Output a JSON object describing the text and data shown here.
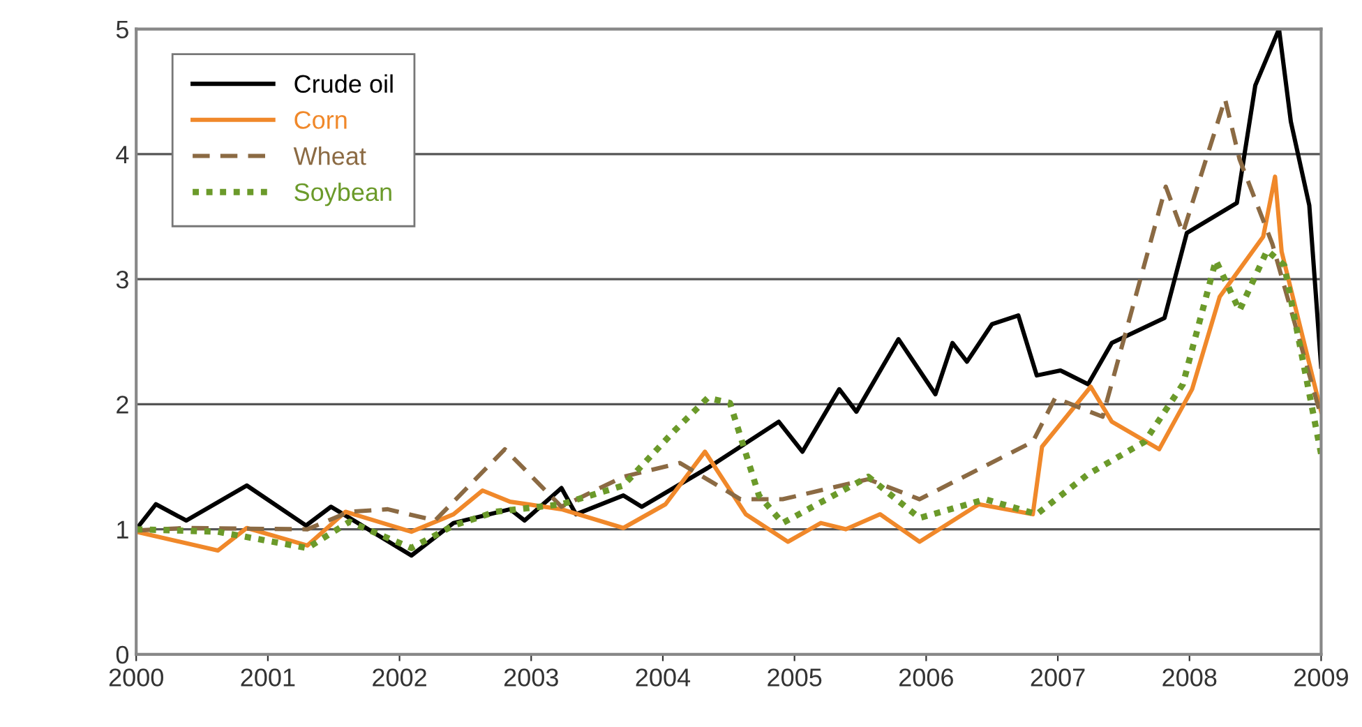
{
  "chart_data": {
    "type": "line",
    "xlim": [
      2000,
      2009
    ],
    "xticks": [
      2000,
      2001,
      2002,
      2003,
      2004,
      2005,
      2006,
      2007,
      2008,
      2009
    ],
    "ylim": [
      0,
      5
    ],
    "yticks": [
      0,
      1,
      2,
      3,
      4,
      5
    ],
    "grid": "y",
    "legend": "top left",
    "series": [
      {
        "name": "Crude oil",
        "color": "#000000",
        "line_style": "solid",
        "x": [
          2000.0,
          2000.15,
          2000.38,
          2000.84,
          2001.29,
          2001.48,
          2002.09,
          2002.41,
          2002.84,
          2002.95,
          2003.23,
          2003.34,
          2003.7,
          2003.84,
          2004.34,
          2004.88,
          2005.06,
          2005.34,
          2005.47,
          2005.79,
          2006.07,
          2006.2,
          2006.31,
          2006.5,
          2006.7,
          2006.84,
          2007.02,
          2007.23,
          2007.41,
          2007.81,
          2007.98,
          2008.36,
          2008.5,
          2008.68,
          2008.77,
          2008.91,
          2009.0
        ],
        "values": [
          1.0,
          1.2,
          1.07,
          1.35,
          1.03,
          1.18,
          0.79,
          1.05,
          1.16,
          1.07,
          1.33,
          1.12,
          1.27,
          1.18,
          1.49,
          1.86,
          1.62,
          2.12,
          1.94,
          2.52,
          2.08,
          2.49,
          2.34,
          2.64,
          2.71,
          2.23,
          2.27,
          2.16,
          2.49,
          2.69,
          3.37,
          3.61,
          4.55,
          5.0,
          4.26,
          3.59,
          2.3
        ]
      },
      {
        "name": "Corn",
        "color": "#f0882a",
        "line_style": "solid",
        "x": [
          2000.0,
          2000.62,
          2000.84,
          2001.3,
          2001.59,
          2002.09,
          2002.41,
          2002.63,
          2002.84,
          2003.23,
          2003.7,
          2004.02,
          2004.32,
          2004.63,
          2004.95,
          2005.2,
          2005.39,
          2005.65,
          2005.95,
          2006.4,
          2006.81,
          2006.88,
          2007.25,
          2007.41,
          2007.77,
          2008.02,
          2008.23,
          2008.56,
          2008.65,
          2008.7,
          2009.0
        ],
        "values": [
          0.98,
          0.83,
          1.01,
          0.87,
          1.14,
          0.98,
          1.12,
          1.31,
          1.22,
          1.16,
          1.01,
          1.2,
          1.62,
          1.12,
          0.9,
          1.05,
          1.0,
          1.12,
          0.9,
          1.2,
          1.12,
          1.66,
          2.14,
          1.86,
          1.64,
          2.12,
          2.86,
          3.34,
          3.82,
          3.22,
          1.94
        ]
      },
      {
        "name": "Wheat",
        "color": "#8b6a43",
        "line_style": "dashed",
        "x": [
          2000.0,
          2000.38,
          2001.3,
          2001.62,
          2001.91,
          2002.27,
          2002.8,
          2003.23,
          2003.7,
          2004.13,
          2004.59,
          2004.91,
          2005.56,
          2005.95,
          2006.81,
          2006.98,
          2007.34,
          2007.82,
          2007.95,
          2008.27,
          2008.38,
          2008.63,
          2009.0
        ],
        "values": [
          0.99,
          1.01,
          1.0,
          1.14,
          1.16,
          1.07,
          1.64,
          1.18,
          1.42,
          1.53,
          1.24,
          1.24,
          1.4,
          1.24,
          1.7,
          2.05,
          1.9,
          3.74,
          3.37,
          4.44,
          3.96,
          3.28,
          1.9
        ]
      },
      {
        "name": "Soybean",
        "color": "#6b9a2a",
        "line_style": "dotted",
        "x": [
          2000.0,
          2000.62,
          2001.3,
          2001.62,
          2002.09,
          2002.41,
          2002.73,
          2003.23,
          2003.7,
          2004.09,
          2004.34,
          2004.51,
          2004.73,
          2004.91,
          2005.56,
          2005.95,
          2006.45,
          2006.84,
          2007.23,
          2007.66,
          2007.95,
          2008.2,
          2008.38,
          2008.59,
          2008.72,
          2009.0
        ],
        "values": [
          1.0,
          0.98,
          0.85,
          1.06,
          0.85,
          1.03,
          1.14,
          1.2,
          1.35,
          1.79,
          2.05,
          2.01,
          1.27,
          1.05,
          1.42,
          1.09,
          1.24,
          1.12,
          1.44,
          1.7,
          2.16,
          3.15,
          2.75,
          3.23,
          3.11,
          1.6
        ]
      }
    ]
  }
}
